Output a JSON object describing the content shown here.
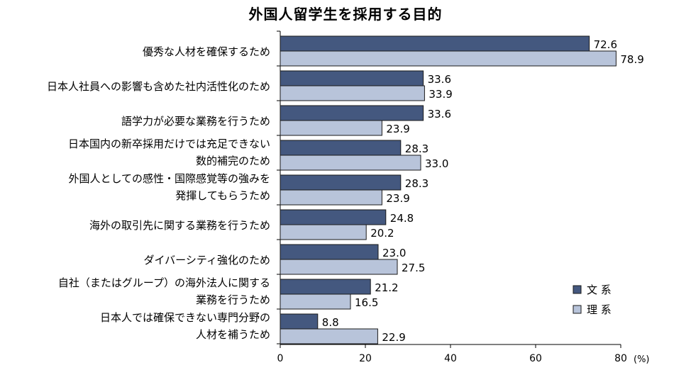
{
  "chart_data": {
    "type": "bar",
    "orientation": "horizontal",
    "title": "外国人留学生を採用する目的",
    "categories": [
      [
        "優秀な人材を確保するため"
      ],
      [
        "日本人社員への影響も含めた社内活性化のため"
      ],
      [
        "語学力が必要な業務を行うため"
      ],
      [
        "日本国内の新卒採用だけでは充足できない",
        "数的補完のため"
      ],
      [
        "外国人としての感性・国際感覚等の強みを",
        "発揮してもらうため"
      ],
      [
        "海外の取引先に関する業務を行うため"
      ],
      [
        "ダイバーシティ強化のため"
      ],
      [
        "自社（またはグループ）の海外法人に関する",
        "業務を行うため"
      ],
      [
        "日本人では確保できない専門分野の",
        "人材を補うため"
      ]
    ],
    "series": [
      {
        "name": "文 系",
        "color": "#44587f",
        "values": [
          72.6,
          33.6,
          33.6,
          28.3,
          28.3,
          24.8,
          23.0,
          21.2,
          8.8
        ],
        "labels": [
          "72.6",
          "33.6",
          "33.6",
          "28.3",
          "28.3",
          "24.8",
          "23.0",
          "21.2",
          "8.8"
        ]
      },
      {
        "name": "理 系",
        "color": "#b8c4da",
        "values": [
          78.9,
          33.9,
          23.9,
          33.0,
          23.9,
          20.2,
          27.5,
          16.5,
          22.9
        ],
        "labels": [
          "78.9",
          "33.9",
          "23.9",
          "33.0",
          "23.9",
          "20.2",
          "27.5",
          "16.5",
          "22.9"
        ]
      }
    ],
    "xlim": [
      0,
      80
    ],
    "xticks": [
      "0",
      "20",
      "40",
      "60",
      "80"
    ],
    "xunit": "(%)",
    "legend_position": "bottom-right",
    "grid": false
  }
}
